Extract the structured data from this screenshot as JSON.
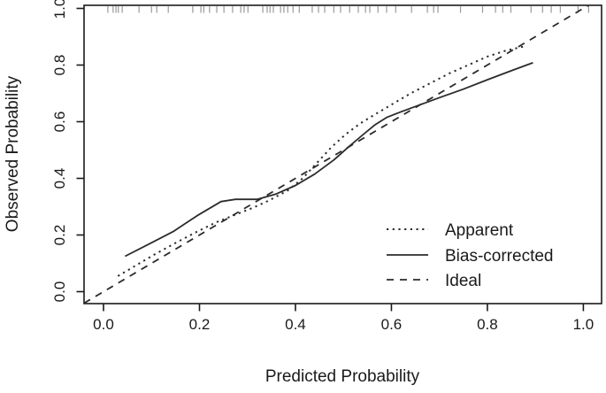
{
  "chart_data": {
    "type": "line",
    "title": "",
    "xlabel": "Predicted Probability",
    "ylabel": "Observed Probability",
    "xlim": [
      -0.04,
      1.04
    ],
    "ylim": [
      -0.04,
      1.01
    ],
    "grid": false,
    "x_ticks": [
      0.0,
      0.2,
      0.4,
      0.6,
      0.8,
      1.0
    ],
    "y_ticks": [
      0.0,
      0.2,
      0.4,
      0.6,
      0.8,
      1.0
    ],
    "x_tick_labels": [
      "0.0",
      "0.2",
      "0.4",
      "0.6",
      "0.8",
      "1.0"
    ],
    "y_tick_labels": [
      "0.0",
      "0.2",
      "0.4",
      "0.6",
      "0.8",
      "1.0"
    ],
    "legend_position": "inside-bottom-right",
    "series": [
      {
        "name": "Apparent",
        "line_style": "dotted",
        "color": "#2b2b2b",
        "width": 2,
        "dash": "2.2 4.5",
        "points": [
          [
            0.03,
            0.055
          ],
          [
            0.065,
            0.09
          ],
          [
            0.105,
            0.13
          ],
          [
            0.15,
            0.172
          ],
          [
            0.195,
            0.212
          ],
          [
            0.235,
            0.245
          ],
          [
            0.275,
            0.272
          ],
          [
            0.31,
            0.295
          ],
          [
            0.345,
            0.322
          ],
          [
            0.385,
            0.358
          ],
          [
            0.415,
            0.4
          ],
          [
            0.445,
            0.455
          ],
          [
            0.475,
            0.51
          ],
          [
            0.505,
            0.556
          ],
          [
            0.535,
            0.594
          ],
          [
            0.565,
            0.625
          ],
          [
            0.6,
            0.66
          ],
          [
            0.64,
            0.7
          ],
          [
            0.68,
            0.735
          ],
          [
            0.72,
            0.77
          ],
          [
            0.76,
            0.8
          ],
          [
            0.8,
            0.83
          ],
          [
            0.84,
            0.852
          ],
          [
            0.875,
            0.865
          ]
        ]
      },
      {
        "name": "Bias-corrected",
        "line_style": "solid",
        "color": "#2b2b2b",
        "width": 1.8,
        "dash": "",
        "points": [
          [
            0.045,
            0.125
          ],
          [
            0.095,
            0.168
          ],
          [
            0.145,
            0.212
          ],
          [
            0.195,
            0.268
          ],
          [
            0.245,
            0.318
          ],
          [
            0.275,
            0.326
          ],
          [
            0.32,
            0.326
          ],
          [
            0.36,
            0.345
          ],
          [
            0.4,
            0.375
          ],
          [
            0.44,
            0.415
          ],
          [
            0.48,
            0.465
          ],
          [
            0.51,
            0.51
          ],
          [
            0.54,
            0.553
          ],
          [
            0.565,
            0.588
          ],
          [
            0.59,
            0.615
          ],
          [
            0.62,
            0.635
          ],
          [
            0.66,
            0.66
          ],
          [
            0.7,
            0.685
          ],
          [
            0.75,
            0.715
          ],
          [
            0.8,
            0.748
          ],
          [
            0.85,
            0.78
          ],
          [
            0.895,
            0.808
          ]
        ]
      },
      {
        "name": "Ideal",
        "line_style": "dashed",
        "color": "#2b2b2b",
        "width": 1.8,
        "dash": "8 7",
        "points": [
          [
            -0.0405,
            -0.0405
          ],
          [
            1.0109,
            1.0109
          ]
        ]
      }
    ],
    "rug_x": [
      0.009,
      0.02,
      0.026,
      0.031,
      0.039,
      0.074,
      0.1,
      0.111,
      0.135,
      0.186,
      0.203,
      0.209,
      0.221,
      0.236,
      0.251,
      0.269,
      0.286,
      0.293,
      0.301,
      0.332,
      0.341,
      0.347,
      0.354,
      0.369,
      0.376,
      0.384,
      0.395,
      0.408,
      0.435,
      0.448,
      0.461,
      0.48,
      0.494,
      0.513,
      0.531,
      0.546,
      0.555,
      0.572,
      0.59,
      0.609,
      0.642,
      0.675,
      0.688,
      0.697,
      0.744,
      0.79,
      0.817,
      0.832,
      0.849,
      0.891,
      0.915,
      0.933,
      0.952,
      0.989,
      1.011
    ],
    "rug_color": "#9a9a9a"
  },
  "axes": {
    "x_title": "Predicted Probability",
    "y_title": "Observed Probability"
  },
  "legend": {
    "items": [
      {
        "label": "Apparent"
      },
      {
        "label": "Bias-corrected"
      },
      {
        "label": "Ideal"
      }
    ]
  },
  "colors": {
    "foreground": "#1a1a1a",
    "line": "#2b2b2b",
    "rug": "#9a9a9a",
    "background": "#ffffff"
  }
}
